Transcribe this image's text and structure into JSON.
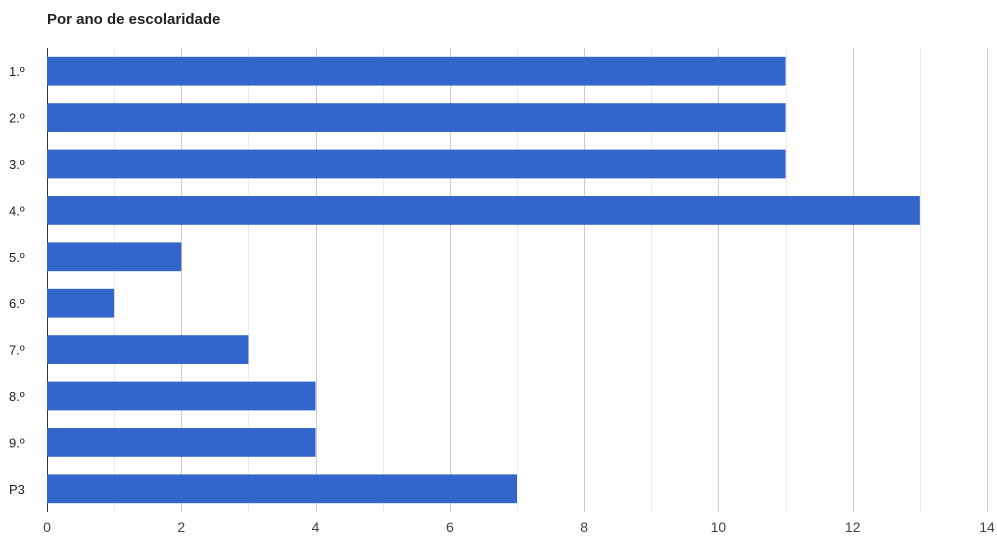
{
  "chart_data": {
    "type": "bar",
    "orientation": "horizontal",
    "title": "Por ano de escolaridade",
    "xlabel": "",
    "ylabel": "",
    "categories": [
      "1.º",
      "2.º",
      "3.º",
      "4.º",
      "5.º",
      "6.º",
      "7.º",
      "8.º",
      "9.º",
      "P3"
    ],
    "values": [
      11,
      11,
      11,
      13,
      2,
      1,
      3,
      4,
      4,
      7
    ],
    "xlim": [
      0,
      14
    ],
    "x_ticks": [
      0,
      2,
      4,
      6,
      8,
      10,
      12,
      14
    ],
    "grid": true,
    "minor_grid": true,
    "legend": "none",
    "colors": {
      "bar": "#3366cc",
      "major_grid": "#cccccc",
      "minor_grid": "#ebebeb",
      "tick_label": "#444444",
      "category_label": "#222222"
    }
  }
}
